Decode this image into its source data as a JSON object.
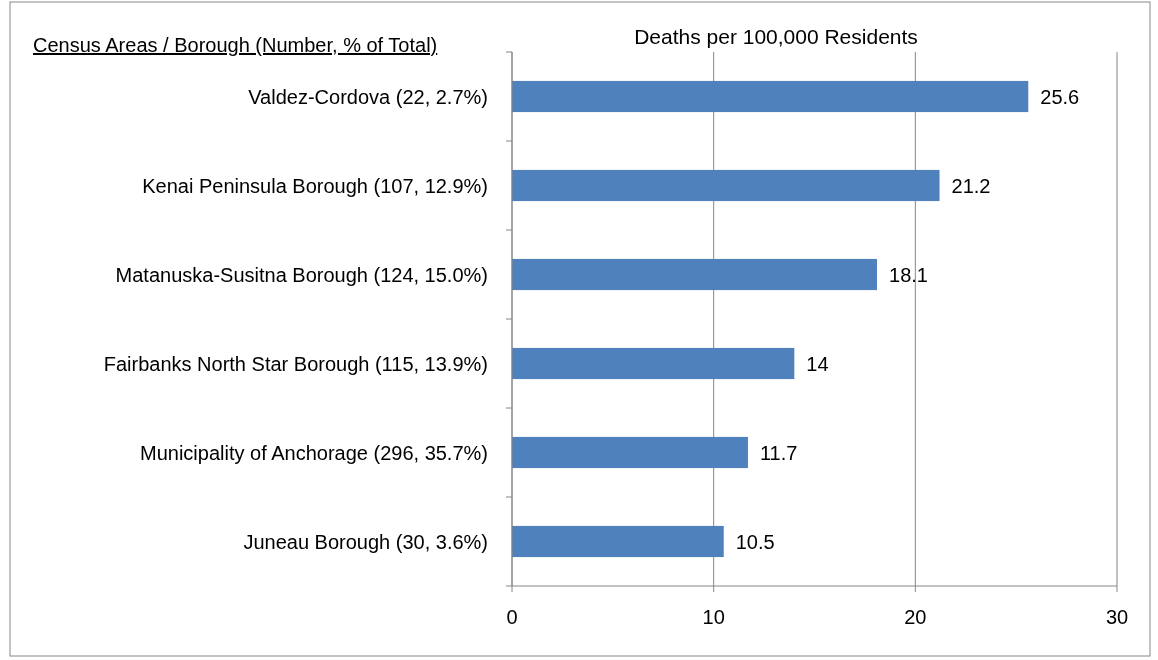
{
  "chart_data": {
    "type": "bar",
    "orientation": "horizontal",
    "title": "Deaths per 100,000 Residents",
    "ylabel": "Census Areas / Borough (Number, % of Total)",
    "categories": [
      "Valdez-Cordova (22, 2.7%)",
      "Kenai Peninsula Borough (107, 12.9%)",
      "Matanuska-Susitna Borough (124, 15.0%)",
      "Fairbanks North Star Borough (115, 13.9%)",
      "Municipality of Anchorage (296, 35.7%)",
      "Juneau Borough (30, 3.6%)"
    ],
    "values": [
      25.6,
      21.2,
      18.1,
      14,
      11.7,
      10.5
    ],
    "color": "#4f81bd",
    "data_labels": true,
    "xlim": [
      0,
      30
    ],
    "xticks": [
      0,
      10,
      20,
      30
    ],
    "grid": "x"
  }
}
